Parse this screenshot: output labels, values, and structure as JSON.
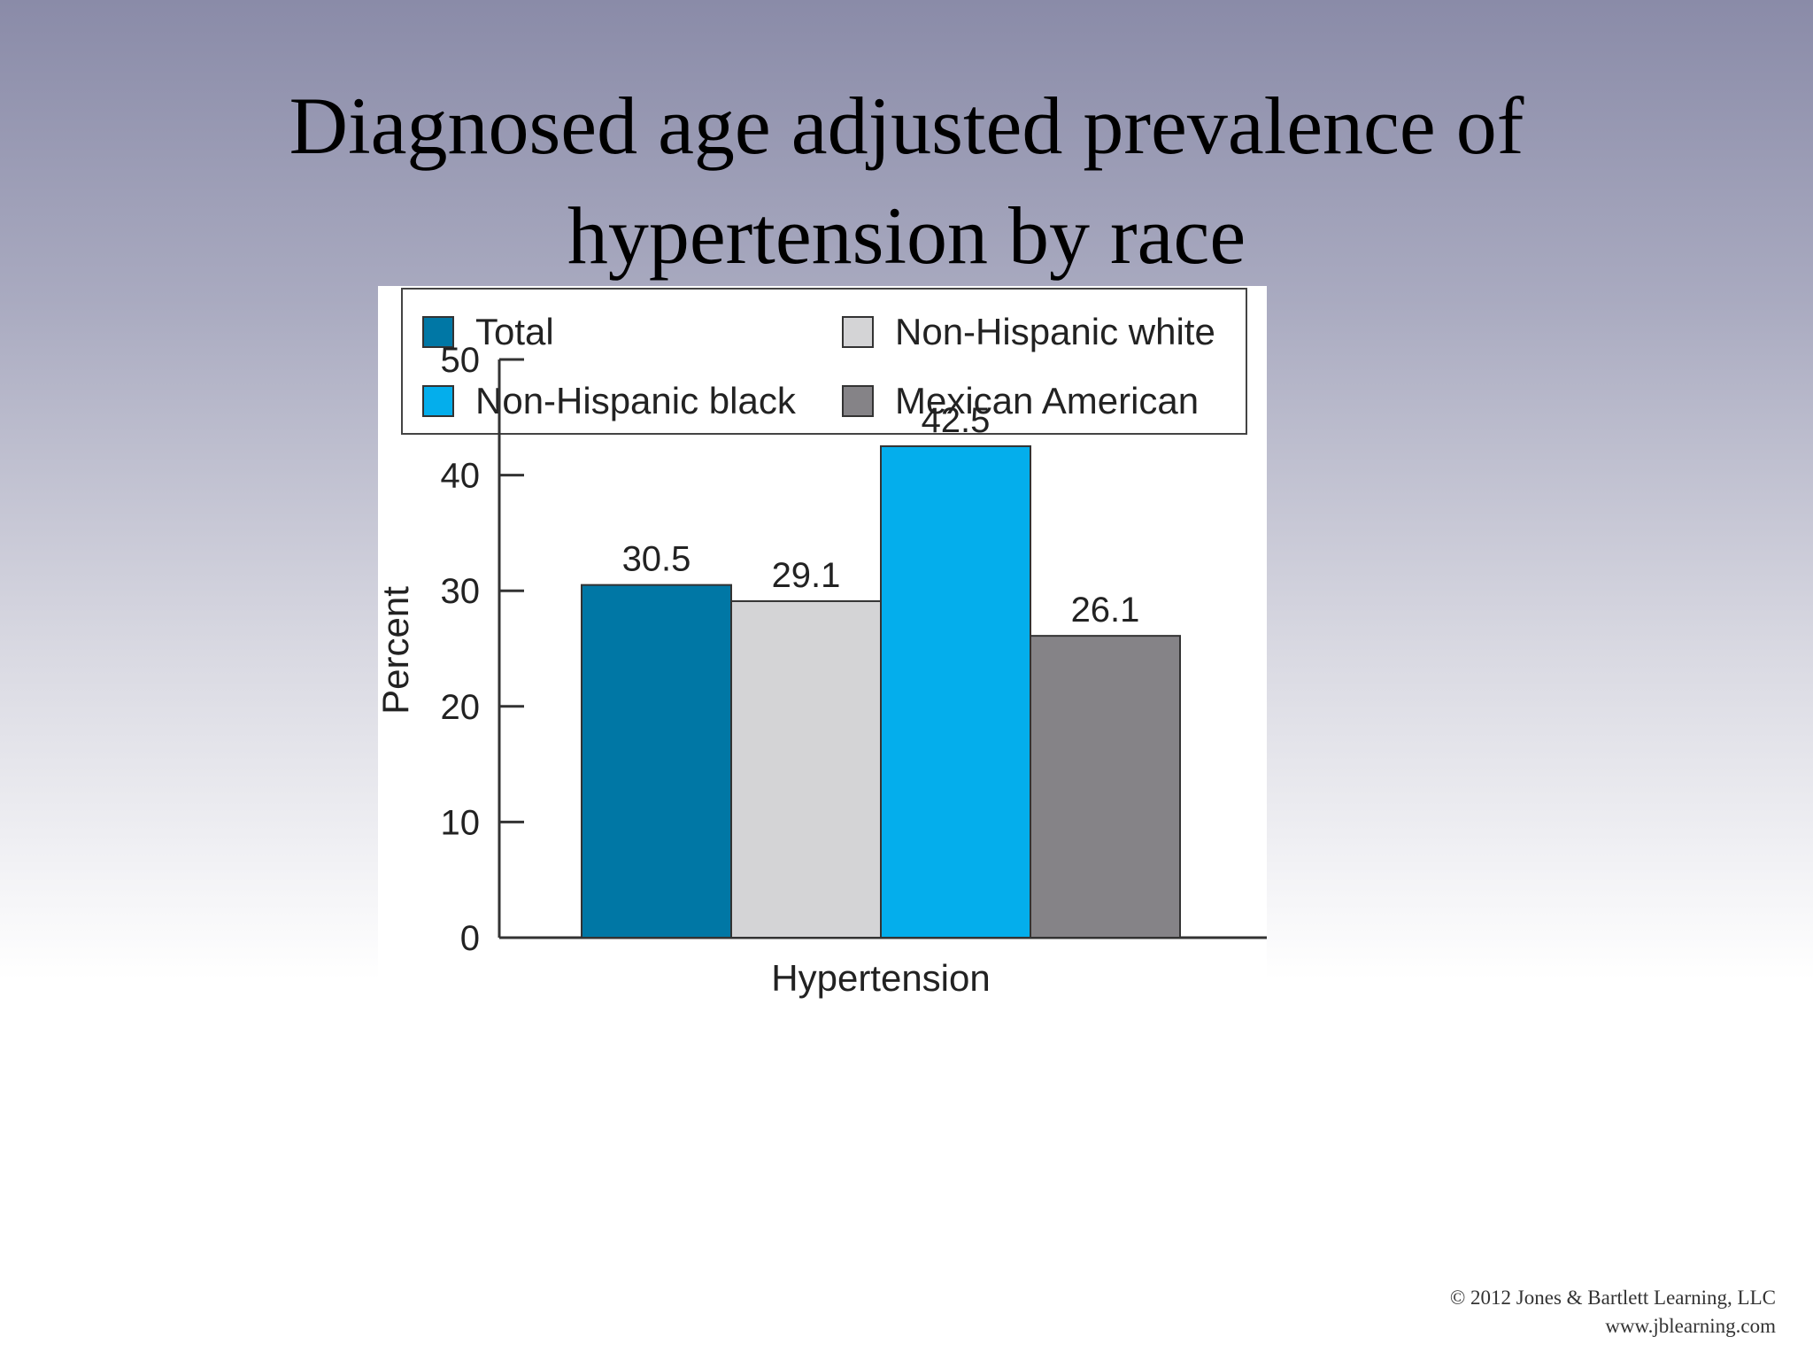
{
  "slide": {
    "title_line1": "Diagnosed age adjusted prevalence of",
    "title_line2": "hypertension by race",
    "copyright": "© 2012 Jones & Bartlett Learning, LLC",
    "website": "www.jblearning.com"
  },
  "chart_data": {
    "type": "bar",
    "categories": [
      "Hypertension"
    ],
    "series": [
      {
        "name": "Total",
        "values": [
          30.5
        ],
        "color": "#0077a5"
      },
      {
        "name": "Non-Hispanic white",
        "values": [
          29.1
        ],
        "color": "#d4d4d6"
      },
      {
        "name": "Non-Hispanic black",
        "values": [
          42.5
        ],
        "color": "#04aeec"
      },
      {
        "name": "Mexican American",
        "values": [
          26.1
        ],
        "color": "#858387"
      }
    ],
    "ylabel": "Percent",
    "xlabel": "",
    "ylim": [
      0,
      50
    ],
    "yticks": [
      0,
      10,
      20,
      30,
      40,
      50
    ],
    "data_labels": [
      "30.5",
      "29.1",
      "42.5",
      "26.1"
    ],
    "grid": false,
    "legend_position": "top"
  }
}
